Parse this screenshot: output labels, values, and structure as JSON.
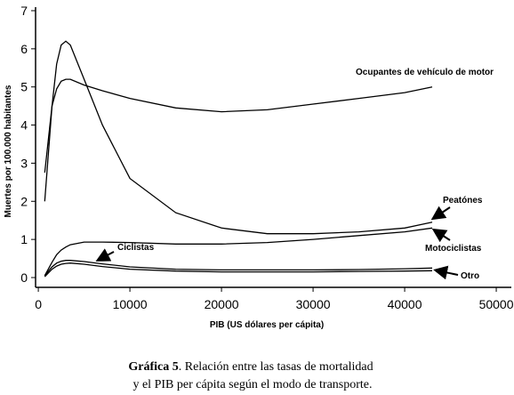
{
  "chart_data": {
    "type": "line",
    "x_label": "PIB (US dólares per cápita)",
    "y_label": "Muertes por 100.000 habitantes",
    "x": [
      700,
      1500,
      2000,
      2500,
      3000,
      3500,
      5000,
      7000,
      10000,
      15000,
      20000,
      25000,
      30000,
      35000,
      40000,
      43000
    ],
    "series": [
      {
        "name": "Ocupantes de vehículo de motor",
        "color": "#000000",
        "values": [
          2.75,
          4.5,
          4.95,
          5.15,
          5.2,
          5.2,
          5.05,
          4.9,
          4.7,
          4.45,
          4.35,
          4.4,
          4.55,
          4.7,
          4.85,
          5.0
        ]
      },
      {
        "name": "Peatónes",
        "color": "#000000",
        "values": [
          2.0,
          4.5,
          5.6,
          6.1,
          6.2,
          6.1,
          5.2,
          4.0,
          2.6,
          1.7,
          1.3,
          1.15,
          1.15,
          1.2,
          1.3,
          1.45
        ]
      },
      {
        "name": "Motociclistas",
        "color": "#000000",
        "values": [
          0.05,
          0.4,
          0.6,
          0.72,
          0.8,
          0.86,
          0.93,
          0.93,
          0.92,
          0.88,
          0.88,
          0.92,
          1.0,
          1.1,
          1.2,
          1.3
        ]
      },
      {
        "name": "Ciclistas",
        "color": "#000000",
        "values": [
          0.05,
          0.28,
          0.38,
          0.43,
          0.45,
          0.45,
          0.42,
          0.36,
          0.28,
          0.22,
          0.2,
          0.2,
          0.2,
          0.21,
          0.23,
          0.25
        ]
      },
      {
        "name": "Otro",
        "color": "#000000",
        "values": [
          0.02,
          0.22,
          0.3,
          0.35,
          0.37,
          0.38,
          0.35,
          0.29,
          0.22,
          0.17,
          0.15,
          0.15,
          0.15,
          0.16,
          0.17,
          0.18
        ]
      }
    ],
    "xlim": [
      -300,
      51500
    ],
    "ylim": [
      -0.25,
      7
    ],
    "xticks": [
      0,
      10000,
      20000,
      30000,
      40000,
      50000
    ],
    "yticks": [
      0,
      1,
      2,
      3,
      4,
      5,
      6,
      7
    ]
  },
  "caption": {
    "label": "Gráfica 5",
    "lines": [
      ". Relación entre las tasas de mortalidad",
      "y el PIB per cápita según el modo de transporte."
    ]
  }
}
